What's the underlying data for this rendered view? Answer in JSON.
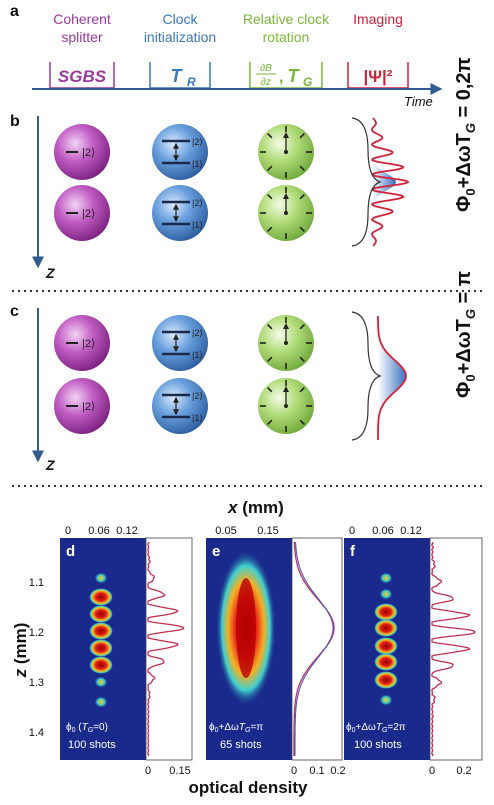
{
  "panels": {
    "a": "a",
    "b": "b",
    "c": "c",
    "d": "d",
    "e": "e",
    "f": "f"
  },
  "stages": [
    {
      "title_line1": "Coherent",
      "title_line2": "splitter",
      "box": "SGBS",
      "color": "#9b3a9e"
    },
    {
      "title_line1": "Clock",
      "title_line2": "initialization",
      "box_main": "T",
      "box_sub": "R",
      "color": "#3a78c0"
    },
    {
      "title_line1": "Relative clock",
      "title_line2": "rotation",
      "box_main": "T",
      "box_sub": "G",
      "frac_num": "∂B",
      "frac_den": "∂z",
      "color": "#7ab83a"
    },
    {
      "title_line1": "Imaging",
      "box": "|Ψ|²",
      "color": "#d0233a"
    }
  ],
  "timeline_label": "Time",
  "z_axis_label": "Z",
  "states": {
    "upper": "|2⟩",
    "lower": "|1⟩",
    "single": "|2⟩"
  },
  "phase_labels": {
    "b": "Φ₀+ΔωT_G = 0,2π",
    "c": "Φ₀+ΔωT_G = π"
  },
  "images": {
    "x_axis_title": "x (mm)",
    "z_axis_title": "z (mm)",
    "od_axis_title": "optical density",
    "z_ticks": [
      "1.1",
      "1.2",
      "1.3",
      "1.4"
    ],
    "d": {
      "x_ticks": [
        "0",
        "0.06",
        "0.12"
      ],
      "od_ticks": [
        "0",
        "0.15"
      ],
      "caption1": "ϕ₀ (T_G=0)",
      "caption2": "100 shots"
    },
    "e": {
      "x_ticks": [
        "0.05",
        "0.15"
      ],
      "od_ticks": [
        "0",
        "0.1",
        "0.2"
      ],
      "caption1": "ϕ₀+ΔωT_G=π",
      "caption2": "65 shots"
    },
    "f": {
      "x_ticks": [
        "0",
        "0.06",
        "0.12"
      ],
      "od_ticks": [
        "0",
        "0.2"
      ],
      "caption1": "ϕ₀+ΔωT_G=2π",
      "caption2": "100 shots"
    }
  },
  "colors": {
    "purple": "#9b3a9e",
    "blue": "#3a78c0",
    "green": "#7ab83a",
    "red": "#d0233a",
    "axis_blue": "#2f5b8e",
    "image_bg": "#1a2a8c"
  }
}
